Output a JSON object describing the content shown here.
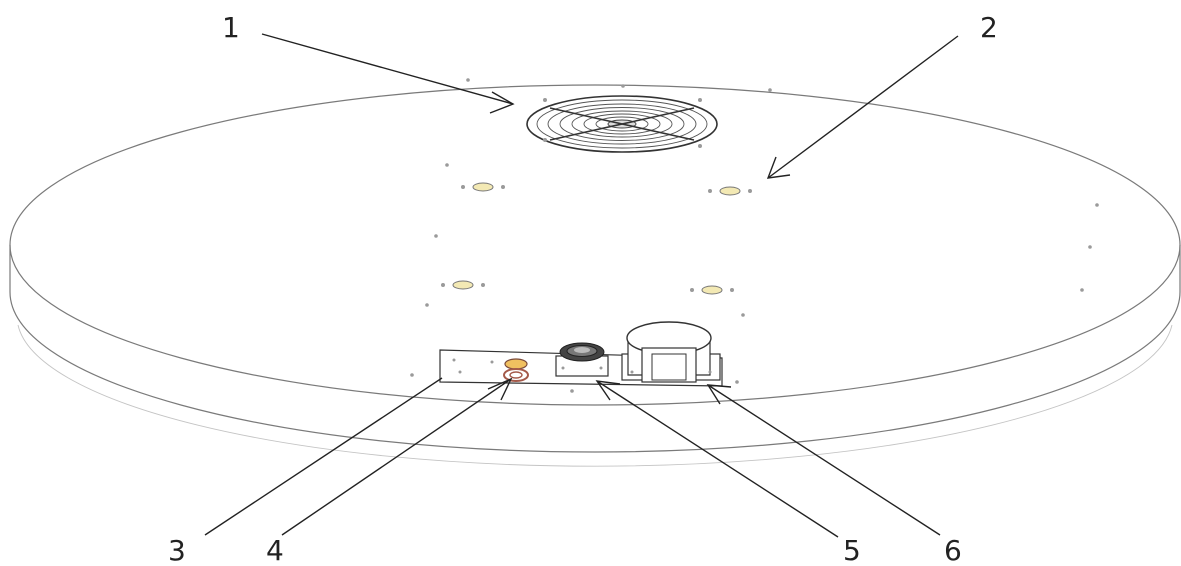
{
  "callouts": [
    {
      "id": "callout-1",
      "label": "1"
    },
    {
      "id": "callout-2",
      "label": "2"
    },
    {
      "id": "callout-3",
      "label": "3"
    },
    {
      "id": "callout-4",
      "label": "4"
    },
    {
      "id": "callout-5",
      "label": "5"
    },
    {
      "id": "callout-6",
      "label": "6"
    }
  ],
  "colors": {
    "line": "#222222",
    "outline": "#7a7a7a",
    "pad": "#f3e9b4",
    "ring": "#a45a4a"
  }
}
